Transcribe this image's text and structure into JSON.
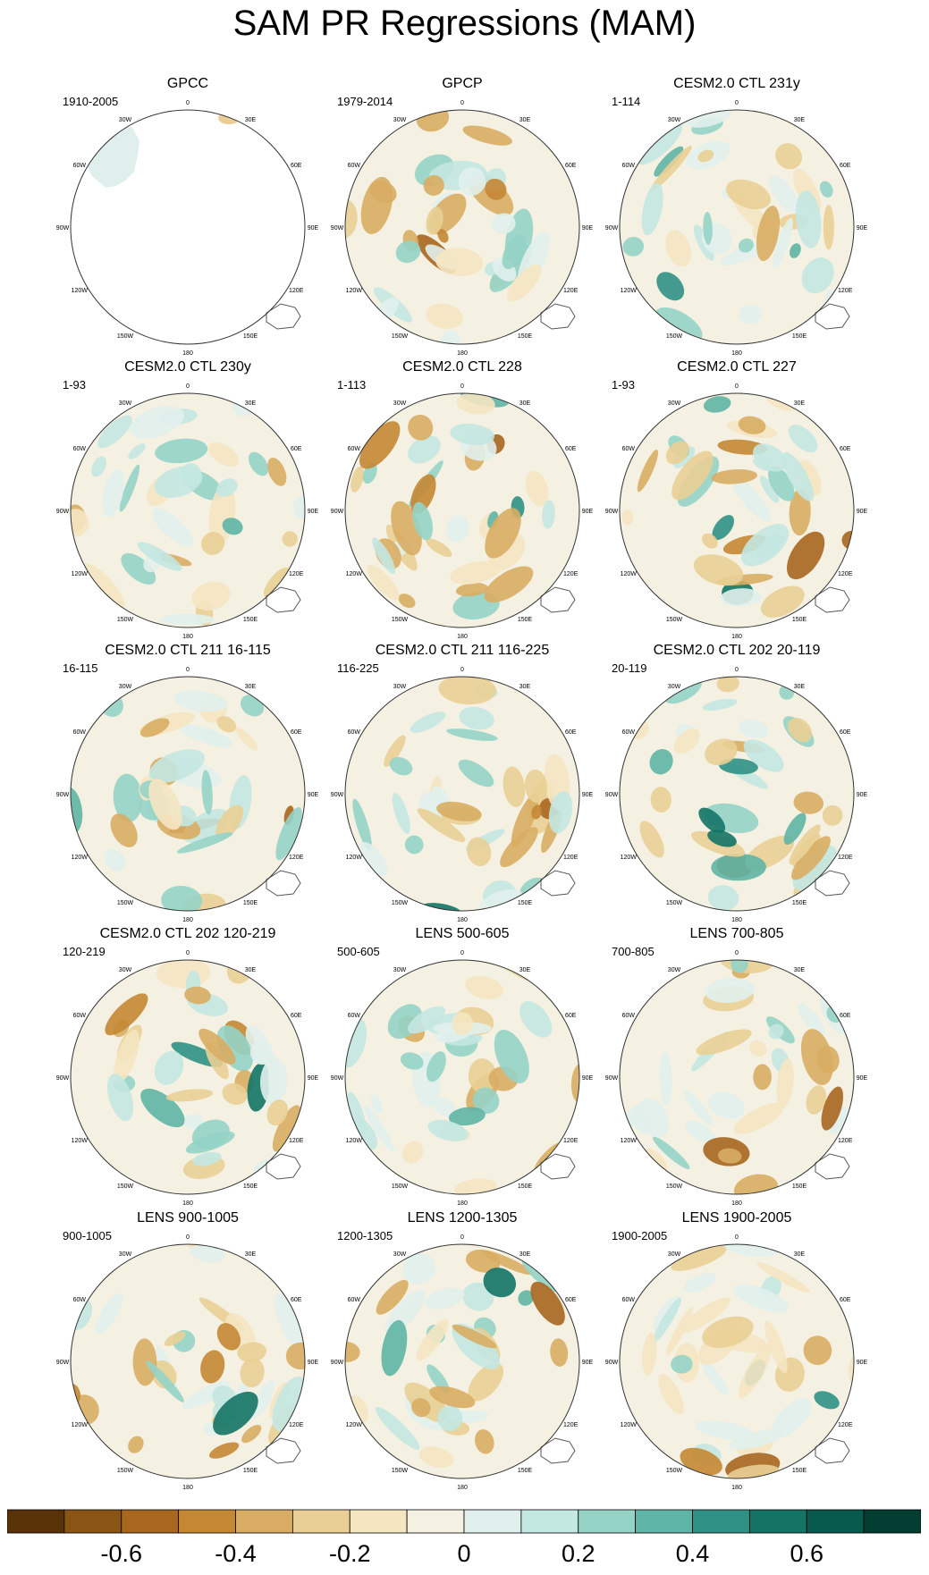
{
  "title": "SAM PR Regressions (MAM)",
  "panels": [
    {
      "title": "GPCC",
      "range": "1910-2005"
    },
    {
      "title": "GPCP",
      "range": "1979-2014"
    },
    {
      "title": "CESM2.0 CTL 231y",
      "range": "1-114"
    },
    {
      "title": "CESM2.0 CTL 230y",
      "range": "1-93"
    },
    {
      "title": "CESM2.0 CTL 228",
      "range": "1-113"
    },
    {
      "title": "CESM2.0 CTL 227",
      "range": "1-93"
    },
    {
      "title": "CESM2.0 CTL 211 16-115",
      "range": "16-115"
    },
    {
      "title": "CESM2.0 CTL 211 116-225",
      "range": "116-225"
    },
    {
      "title": "CESM2.0 CTL 202 20-119",
      "range": "20-119"
    },
    {
      "title": "CESM2.0 CTL 202 120-219",
      "range": "120-219"
    },
    {
      "title": "LENS 500-605",
      "range": "500-605"
    },
    {
      "title": "LENS 700-805",
      "range": "700-805"
    },
    {
      "title": "LENS 900-1005",
      "range": "900-1005"
    },
    {
      "title": "LENS 1200-1305",
      "range": "1200-1305"
    },
    {
      "title": "LENS 1900-2005",
      "range": "1900-2005"
    }
  ],
  "lon_labels": [
    "0",
    "30E",
    "60E",
    "90E",
    "120E",
    "150E",
    "180",
    "150W",
    "120W",
    "90W",
    "60W",
    "30W"
  ],
  "colorbar": {
    "colors": [
      "#5a3208",
      "#8a5415",
      "#a8661f",
      "#c48734",
      "#d8ad63",
      "#e9cf95",
      "#f5e6c2",
      "#f4f0e2",
      "#e1efec",
      "#c3e7e1",
      "#95d3c6",
      "#5fb5a6",
      "#2f9185",
      "#137466",
      "#075a4c",
      "#013d31"
    ],
    "labels": [
      "-0.6",
      "-0.4",
      "-0.2",
      "0",
      "0.2",
      "0.4",
      "0.6"
    ]
  }
}
